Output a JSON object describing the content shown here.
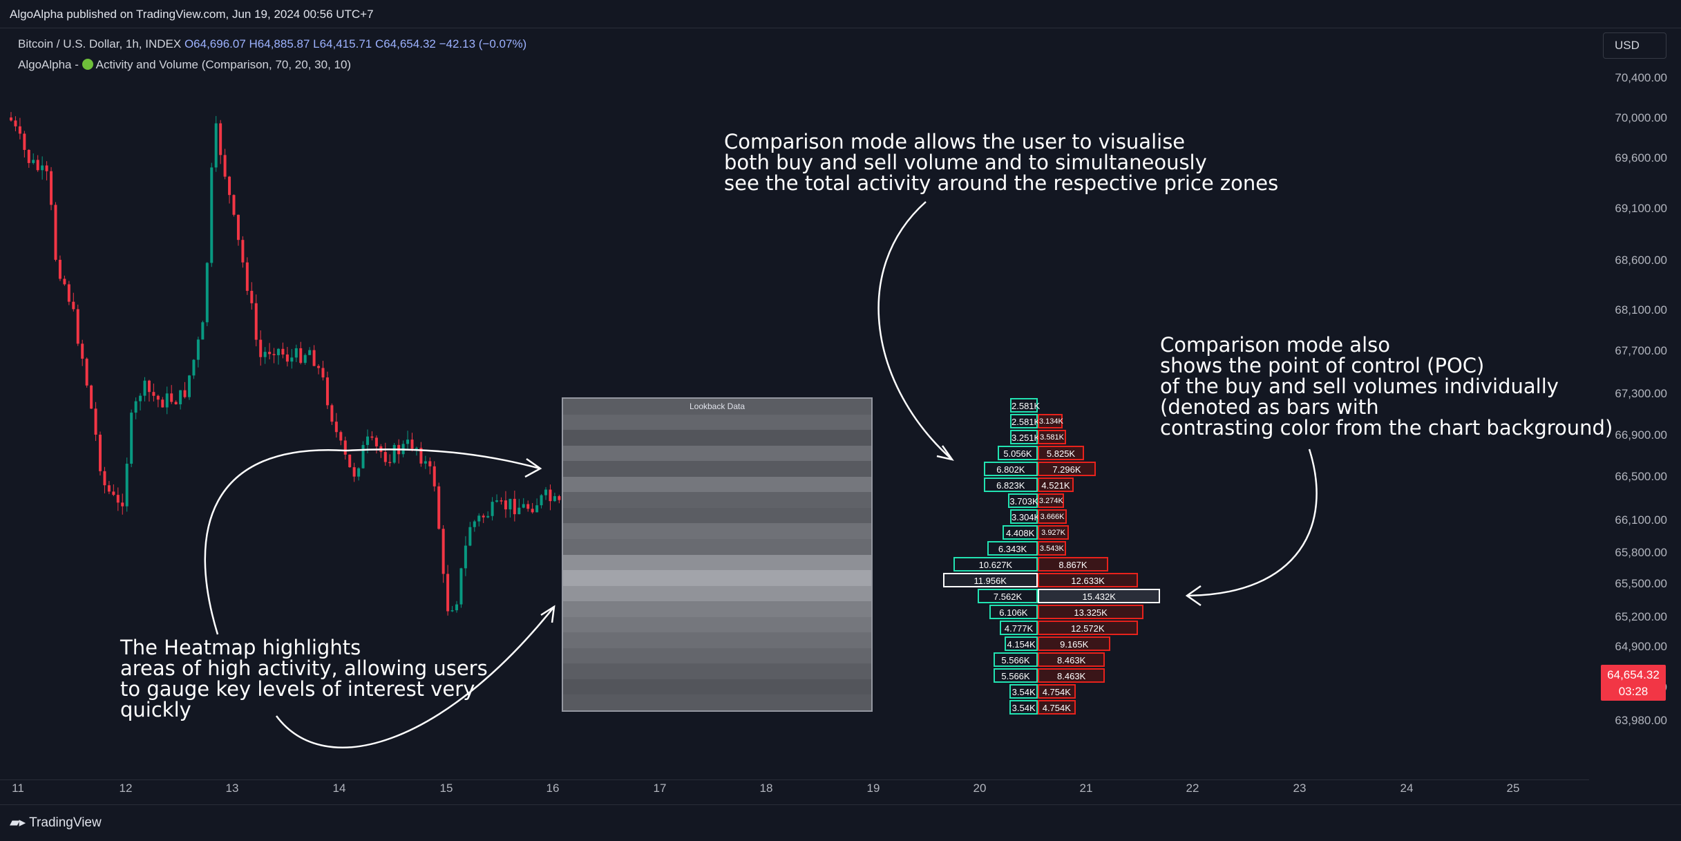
{
  "publisher_line": "AlgoAlpha published on TradingView.com, Jun 19, 2024 00:56 UTC+7",
  "legend": {
    "symbol": "Bitcoin / U.S. Dollar, 1h, INDEX",
    "ohlc": "O64,696.07 H64,885.87 L64,415.71 C64,654.32 −42.13 (−0.07%)",
    "indicator_prefix": "AlgoAlpha -",
    "indicator_name": "Activity and Volume (Comparison, 70, 20, 30, 10)"
  },
  "currency": "USD",
  "price_axis": {
    "ticks": [
      "70,400.00",
      "70,000.00",
      "69,600.00",
      "69,100.00",
      "68,600.00",
      "68,100.00",
      "67,700.00",
      "67,300.00",
      "66,900.00",
      "66,500.00",
      "66,100.00",
      "65,800.00",
      "65,500.00",
      "65,200.00",
      "64,900.00",
      "64,280.00",
      "63,980.00"
    ],
    "last_price": "64,654.32",
    "countdown": "03:28"
  },
  "time_axis": {
    "ticks": [
      "11",
      "12",
      "13",
      "14",
      "15",
      "16",
      "17",
      "18",
      "19",
      "20",
      "21",
      "22",
      "23",
      "24",
      "25"
    ]
  },
  "heatmap": {
    "title": "Lookback Data",
    "band_levels": [
      0.3,
      0.35,
      0.25,
      0.4,
      0.28,
      0.45,
      0.33,
      0.3,
      0.42,
      0.38,
      0.6,
      0.72,
      0.62,
      0.5,
      0.45,
      0.4,
      0.35,
      0.3,
      0.25,
      0.28
    ]
  },
  "volume_profile": {
    "rows": [
      {
        "buy": "2.581K",
        "sell": ""
      },
      {
        "buy": "2.581K",
        "sell": "3.134K"
      },
      {
        "buy": "3.251K",
        "sell": "3.581K"
      },
      {
        "buy": "5.056K",
        "sell": "5.825K"
      },
      {
        "buy": "6.802K",
        "sell": "7.296K"
      },
      {
        "buy": "6.823K",
        "sell": "4.521K"
      },
      {
        "buy": "3.703K",
        "sell": "3.274K"
      },
      {
        "buy": "3.304K",
        "sell": "3.666K"
      },
      {
        "buy": "4.408K",
        "sell": "3.927K"
      },
      {
        "buy": "6.343K",
        "sell": "3.543K"
      },
      {
        "buy": "10.627K",
        "sell": "8.867K"
      },
      {
        "buy": "11.956K",
        "sell": "12.633K"
      },
      {
        "buy": "7.562K",
        "sell": "15.432K"
      },
      {
        "buy": "6.106K",
        "sell": "13.325K"
      },
      {
        "buy": "4.777K",
        "sell": "12.572K"
      },
      {
        "buy": "4.154K",
        "sell": "9.165K"
      },
      {
        "buy": "5.566K",
        "sell": "8.463K"
      },
      {
        "buy": "5.566K",
        "sell": "8.463K"
      },
      {
        "buy": "3.54K",
        "sell": "4.754K"
      },
      {
        "buy": "3.54K",
        "sell": "4.754K"
      }
    ],
    "poc_buy_row": 11,
    "poc_sell_row": 12
  },
  "annotations": {
    "comparison": [
      "Comparison mode allows the user to visualise",
      "both buy and sell volume and to simultaneously",
      "see the total activity around the respective price zones"
    ],
    "poc": [
      "Comparison mode also",
      "shows the point of control (POC)",
      "of the buy and sell volumes individually",
      "(denoted as bars with",
      "contrasting color from the chart background)"
    ],
    "heatmap": [
      "The Heatmap highlights",
      "areas of high activity, allowing users",
      "to gauge key levels of interest very",
      "quickly"
    ]
  },
  "colors": {
    "background": "#131722",
    "up": "#089981",
    "down": "#f23645",
    "buy_outline": "#22e3b2",
    "sell_outline": "#e8221c"
  },
  "footer_brand": "TradingView"
}
